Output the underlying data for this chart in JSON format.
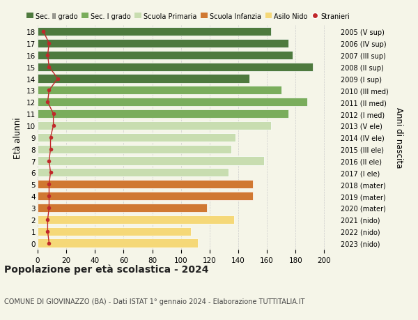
{
  "ages": [
    18,
    17,
    16,
    15,
    14,
    13,
    12,
    11,
    10,
    9,
    8,
    7,
    6,
    5,
    4,
    3,
    2,
    1,
    0
  ],
  "values": [
    163,
    175,
    178,
    192,
    148,
    170,
    188,
    175,
    163,
    138,
    135,
    158,
    133,
    150,
    150,
    118,
    137,
    107,
    112
  ],
  "stranieri": [
    4,
    8,
    7,
    8,
    14,
    8,
    7,
    11,
    11,
    9,
    9,
    8,
    9,
    8,
    8,
    8,
    7,
    7,
    8
  ],
  "bar_colors": [
    "#4e7a3e",
    "#4e7a3e",
    "#4e7a3e",
    "#4e7a3e",
    "#4e7a3e",
    "#7aad5c",
    "#7aad5c",
    "#7aad5c",
    "#c8ddb0",
    "#c8ddb0",
    "#c8ddb0",
    "#c8ddb0",
    "#c8ddb0",
    "#d07832",
    "#d07832",
    "#d07832",
    "#f5d878",
    "#f5d878",
    "#f5d878"
  ],
  "right_labels": [
    "2005 (V sup)",
    "2006 (IV sup)",
    "2007 (III sup)",
    "2008 (II sup)",
    "2009 (I sup)",
    "2010 (III med)",
    "2011 (II med)",
    "2012 (I med)",
    "2013 (V ele)",
    "2014 (IV ele)",
    "2015 (III ele)",
    "2016 (II ele)",
    "2017 (I ele)",
    "2018 (mater)",
    "2019 (mater)",
    "2020 (mater)",
    "2021 (nido)",
    "2022 (nido)",
    "2023 (nido)"
  ],
  "legend_labels": [
    "Sec. II grado",
    "Sec. I grado",
    "Scuola Primaria",
    "Scuola Infanzia",
    "Asilo Nido",
    "Stranieri"
  ],
  "legend_colors": [
    "#4e7a3e",
    "#7aad5c",
    "#c8ddb0",
    "#d07832",
    "#f5d878",
    "#c0282a"
  ],
  "stranieri_color": "#c0282a",
  "title": "Popolazione per età scolastica - 2024",
  "subtitle": "COMUNE DI GIOVINAZZO (BA) - Dati ISTAT 1° gennaio 2024 - Elaborazione TUTTITALIA.IT",
  "ylabel_left": "Età alunni",
  "ylabel_right": "Anni di nascita",
  "xlim": [
    0,
    210
  ],
  "xticks": [
    0,
    20,
    40,
    60,
    80,
    100,
    120,
    140,
    160,
    180,
    200
  ],
  "bg_color": "#f5f5e8",
  "bar_height": 0.72
}
